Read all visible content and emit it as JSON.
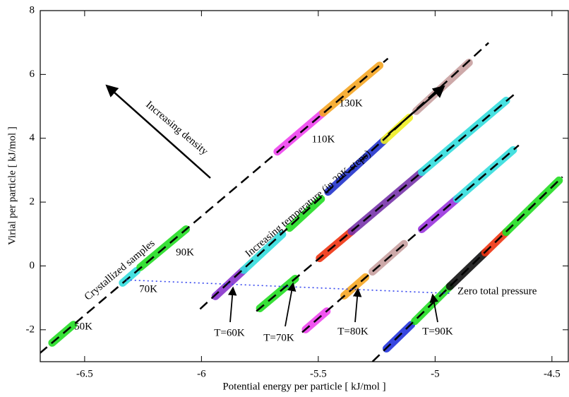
{
  "chart_data": {
    "type": "scatter",
    "x_label": "Potential energy per particle [ kJ/mol ]",
    "y_label": "Virial per particle [ kJ/mol ]",
    "xlim": [
      -6.69,
      -4.43
    ],
    "ylim": [
      -3,
      8
    ],
    "xticks": [
      -6.5,
      -6,
      -5.5,
      -5,
      -4.5
    ],
    "yticks": [
      -2,
      0,
      2,
      4,
      6,
      8
    ],
    "fit_lines": [
      {
        "color": "#000000",
        "x": [
          -6.693,
          -5.202
        ],
        "values": [
          -2.74,
          6.5
        ]
      },
      {
        "color": "#000000",
        "x": [
          -6.006,
          -4.771
        ],
        "values": [
          -1.35,
          6.99
        ]
      },
      {
        "color": "#000000",
        "x": [
          -5.765,
          -4.651
        ],
        "values": [
          -1.42,
          5.44
        ]
      },
      {
        "color": "#000000",
        "x": [
          -5.569,
          -4.642
        ],
        "values": [
          -2.08,
          3.78
        ]
      },
      {
        "color": "#000000",
        "x": [
          -5.268,
          -4.455
        ],
        "values": [
          -3.0,
          2.79
        ]
      }
    ],
    "series": [
      {
        "color": "#22dd22",
        "x": [
          -6.639,
          -6.548
        ],
        "values": [
          -2.41,
          -1.84
        ]
      },
      {
        "color": "#33dddd",
        "x": [
          -6.337,
          -6.277
        ],
        "values": [
          -0.53,
          -0.15
        ]
      },
      {
        "color": "#22dd22",
        "x": [
          -6.262,
          -6.066
        ],
        "values": [
          -0.04,
          1.15
        ]
      },
      {
        "color": "#ee44ee",
        "x": [
          -5.675,
          -5.479
        ],
        "values": [
          3.58,
          4.8
        ]
      },
      {
        "color": "#f5a623",
        "x": [
          -5.479,
          -5.238
        ],
        "values": [
          4.8,
          6.28
        ]
      },
      {
        "color": "#8833cc",
        "x": [
          -5.94,
          -5.819
        ],
        "values": [
          -0.95,
          -0.13
        ]
      },
      {
        "color": "#33dddd",
        "x": [
          -5.819,
          -5.654
        ],
        "values": [
          -0.13,
          0.99
        ]
      },
      {
        "color": "#22dd22",
        "x": [
          -5.623,
          -5.488
        ],
        "values": [
          1.19,
          2.1
        ]
      },
      {
        "color": "#2233cc",
        "x": [
          -5.458,
          -5.217
        ],
        "values": [
          2.32,
          3.94
        ]
      },
      {
        "color": "#eeee22",
        "x": [
          -5.217,
          -5.111
        ],
        "values": [
          3.94,
          4.65
        ]
      },
      {
        "color": "#c8a0a0",
        "x": [
          -5.081,
          -4.855
        ],
        "values": [
          4.85,
          6.37
        ]
      },
      {
        "color": "#22dd22",
        "x": [
          -5.75,
          -5.599
        ],
        "values": [
          -1.33,
          -0.4
        ]
      },
      {
        "color": "#ee3311",
        "x": [
          -5.494,
          -5.358
        ],
        "values": [
          0.24,
          1.08
        ]
      },
      {
        "color": "#7733aa",
        "x": [
          -5.358,
          -5.057
        ],
        "values": [
          1.08,
          2.94
        ]
      },
      {
        "color": "#33dddd",
        "x": [
          -5.057,
          -4.696
        ],
        "values": [
          2.94,
          5.18
        ]
      },
      {
        "color": "#ee44ee",
        "x": [
          -5.554,
          -5.464
        ],
        "values": [
          -1.99,
          -1.42
        ]
      },
      {
        "color": "#f5a623",
        "x": [
          -5.389,
          -5.298
        ],
        "values": [
          -0.93,
          -0.35
        ]
      },
      {
        "color": "#c8a0a0",
        "x": [
          -5.268,
          -5.133
        ],
        "values": [
          -0.18,
          0.69
        ]
      },
      {
        "color": "#9933dd",
        "x": [
          -5.057,
          -4.907
        ],
        "values": [
          1.15,
          2.1
        ]
      },
      {
        "color": "#33dddd",
        "x": [
          -4.907,
          -4.666
        ],
        "values": [
          2.1,
          3.63
        ]
      },
      {
        "color": "#2233dd",
        "x": [
          -5.208,
          -5.102
        ],
        "values": [
          -2.59,
          -1.84
        ]
      },
      {
        "color": "#22dd22",
        "x": [
          -5.087,
          -4.937
        ],
        "values": [
          -1.73,
          -0.64
        ]
      },
      {
        "color": "#111111",
        "x": [
          -4.937,
          -4.786
        ],
        "values": [
          -0.64,
          0.42
        ]
      },
      {
        "color": "#ee3311",
        "x": [
          -4.786,
          -4.696
        ],
        "values": [
          0.42,
          1.06
        ]
      },
      {
        "color": "#22dd22",
        "x": [
          -4.696,
          -4.47
        ],
        "values": [
          1.06,
          2.68
        ]
      }
    ],
    "zero_pressure_line": {
      "color": "#3344ee",
      "x": [
        -6.322,
        -4.937
      ],
      "values": [
        -0.44,
        -0.86
      ]
    },
    "annotations": [
      "50K",
      "70K",
      "90K",
      "110K",
      "130K",
      "Crystallized samples",
      "Increasing density",
      "Increasing temperature (in 20K steps)",
      "T=60K",
      "T=70K",
      "T=80K",
      "T=90K",
      "Zero total pressure"
    ]
  }
}
